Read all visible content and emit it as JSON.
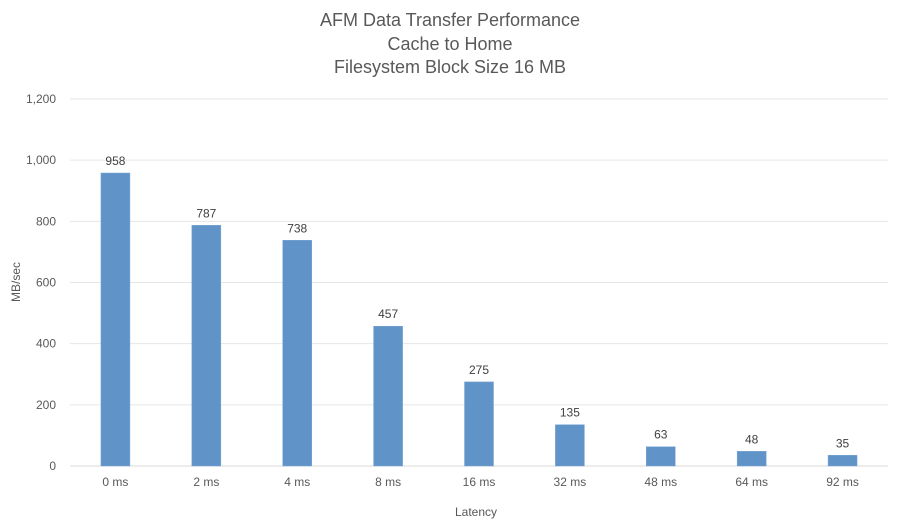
{
  "chart_data": {
    "type": "bar",
    "title": "AFM Data Transfer Performance",
    "subtitle": [
      "Cache to Home",
      "Filesystem Block Size 16 MB"
    ],
    "xlabel": "Latency",
    "ylabel": "MB/sec",
    "categories": [
      "0 ms",
      "2 ms",
      "4 ms",
      "8 ms",
      "16 ms",
      "32 ms",
      "48 ms",
      "64 ms",
      "92 ms"
    ],
    "values": [
      958,
      787,
      738,
      457,
      275,
      135,
      63,
      48,
      35
    ],
    "ylim": [
      0,
      1200
    ],
    "yticks": [
      0,
      200,
      400,
      600,
      800,
      1000,
      1200
    ],
    "ytick_labels": [
      "0",
      "200",
      "400",
      "600",
      "800",
      "1,000",
      "1,200"
    ],
    "grid": true,
    "legend": null,
    "data_labels": true,
    "bar_color": "#6094C8"
  }
}
